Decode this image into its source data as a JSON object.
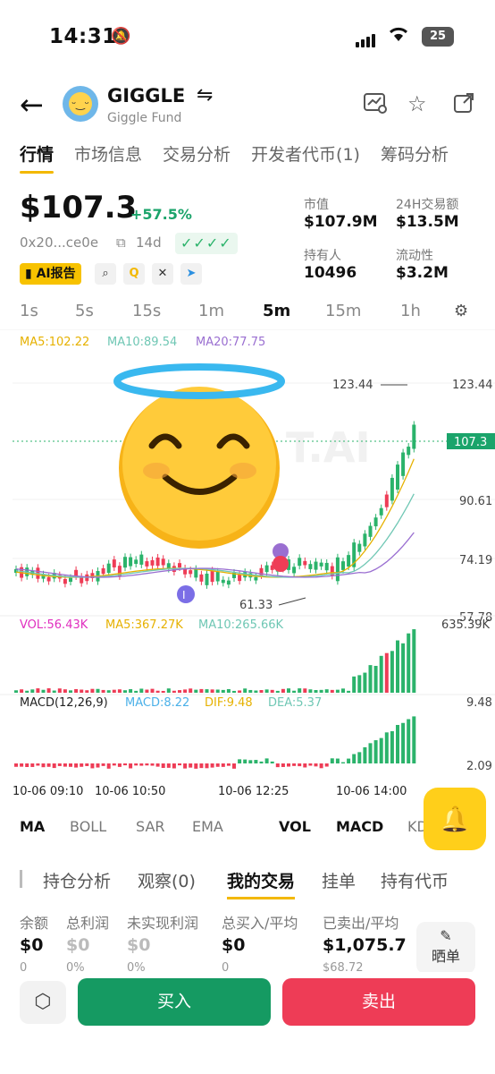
{
  "status_bar": {
    "time": "14:31",
    "battery": "25"
  },
  "header": {
    "token_name": "GIGGLE",
    "token_subtitle": "Giggle Fund"
  },
  "tabs": [
    {
      "label": "行情",
      "active": true
    },
    {
      "label": "市场信息"
    },
    {
      "label": "交易分析"
    },
    {
      "label": "开发者代币(1)"
    },
    {
      "label": "筹码分析"
    }
  ],
  "price": {
    "value": "$107.3",
    "change": "+57.5%",
    "address": "0x20...ce0e",
    "age": "14d",
    "checks": "✓✓✓✓",
    "ai_report": "AI报告"
  },
  "stats": {
    "market_cap_label": "市值",
    "market_cap": "$107.9M",
    "volume_label": "24H交易额",
    "volume": "$13.5M",
    "holders_label": "持有人",
    "holders": "10496",
    "liquidity_label": "流动性",
    "liquidity": "$3.2M"
  },
  "intervals": [
    "1s",
    "5s",
    "15s",
    "1m",
    "5m",
    "15m",
    "1h"
  ],
  "active_interval": "5m",
  "chart_data": {
    "type": "candlestick",
    "ma_labels": {
      "ma5": "MA5:102.22",
      "ma10": "MA10:89.54",
      "ma20": "MA20:77.75"
    },
    "y_ticks": [
      "123.44",
      "90.61",
      "74.19",
      "57.78"
    ],
    "current_price_label": "107.3",
    "high_marker": "123.44",
    "low_marker": "61.33",
    "watermark": "T.AI",
    "x_ticks": [
      "10-06 09:10",
      "10-06 10:50",
      "10-06 12:25",
      "10-06 14:00"
    ],
    "vol_labels": {
      "vol": "VOL:56.43K",
      "ma5": "MA5:367.27K",
      "ma10": "MA10:265.66K",
      "max": "635.39K"
    },
    "macd_labels": {
      "macd": "MACD(12,26,9)",
      "value": "MACD:8.22",
      "dif": "DIF:9.48",
      "dea": "DEA:5.37",
      "max": "9.48",
      "min": "2.09"
    },
    "colors": {
      "up": "#2bb36b",
      "down": "#ee3c56",
      "ma5": "#e6b100",
      "ma10": "#6fc7b4",
      "ma20": "#9a6fd1"
    }
  },
  "indicators": [
    "MA",
    "BOLL",
    "SAR",
    "EMA",
    "VOL",
    "MACD",
    "KD"
  ],
  "section_tabs": [
    "持仓分析",
    "观察(0)",
    "我的交易",
    "挂单",
    "持有代币"
  ],
  "my_trades": {
    "labels": [
      "余额",
      "总利润",
      "未实现利润",
      "总买入/平均",
      "已卖出/平均"
    ],
    "values": [
      "$0",
      "$0",
      "$0",
      "$0",
      "$1,075.7"
    ],
    "subs": [
      "0",
      "0%",
      "0%",
      "0",
      "$68.72"
    ]
  },
  "share_label": "晒单",
  "buy_label": "买入",
  "sell_label": "卖出"
}
